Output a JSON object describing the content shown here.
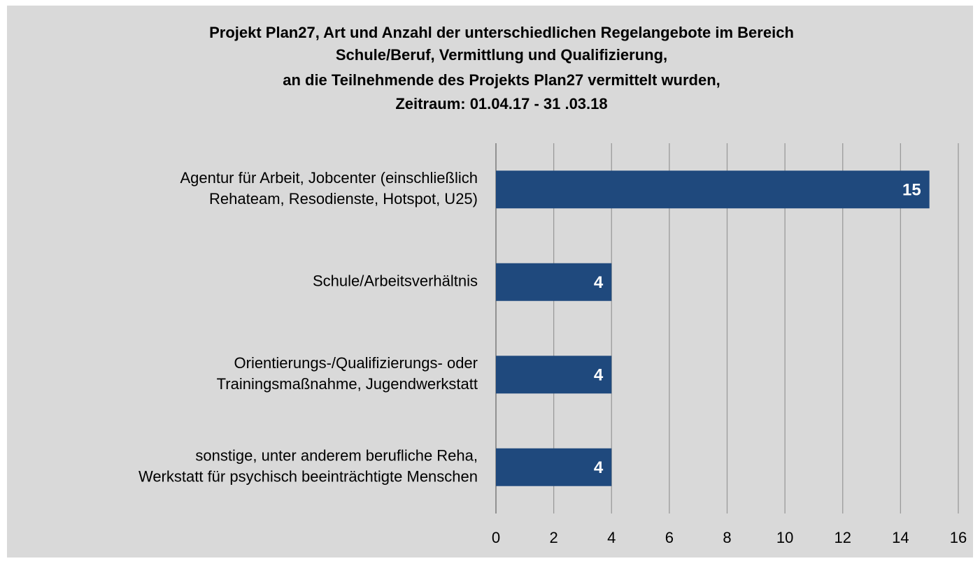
{
  "chart_data": {
    "type": "bar",
    "orientation": "horizontal",
    "title": [
      "Projekt Plan27, Art und Anzahl der unterschiedlichen Regelangebote im Bereich",
      "Schule/Beruf, Vermittlung und Qualifizierung,",
      "an die Teilnehmende des Projekts Plan27 vermittelt wurden,",
      "Zeitraum:  01.04.17 - 31 .03.18"
    ],
    "categories": [
      [
        "Agentur für Arbeit, Jobcenter (einschließlich",
        "Rehateam, Resodienste, Hotspot, U25)"
      ],
      [
        "Schule/Arbeitsverhältnis"
      ],
      [
        "Orientierungs-/Qualifizierungs- oder",
        "Trainingsmaßnahme, Jugendwerkstatt"
      ],
      [
        "sonstige, unter anderem berufliche Reha,",
        "Werkstatt für psychisch beeinträchtigte Menschen"
      ]
    ],
    "values": [
      15,
      4,
      4,
      4
    ],
    "color": "#1f497d",
    "xlim": [
      0,
      16
    ],
    "xticks": [
      0,
      2,
      4,
      6,
      8,
      10,
      12,
      14,
      16
    ],
    "grid": true
  }
}
